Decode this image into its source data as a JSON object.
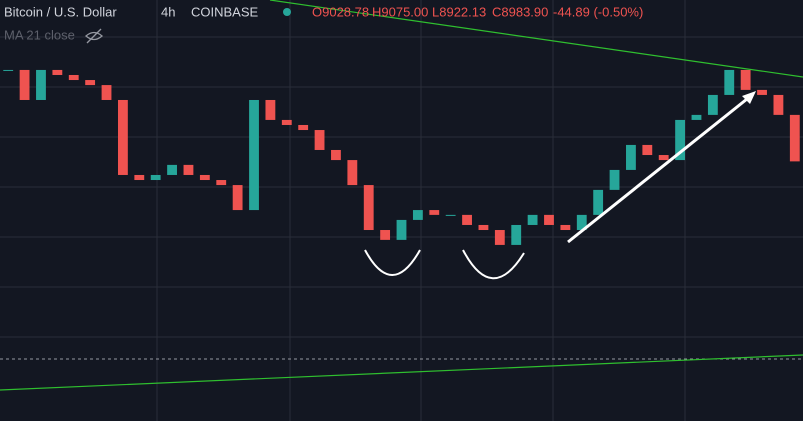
{
  "chart_data": {
    "type": "candlestick",
    "title": "Bitcoin / U.S. Dollar",
    "interval": "4h",
    "exchange": "COINBASE",
    "ohlc": [
      "O9028.78",
      "H9075.00",
      "L8922.13",
      "C8983.90"
    ],
    "change": "-44.89 (-0.50%)",
    "indicator": "MA 21 close",
    "up_color": "#26a69a",
    "down_color": "#ef5350",
    "ylim": [
      7800,
      9720
    ],
    "values": [
      9401,
      9264,
      9401,
      9378,
      9355,
      9332,
      9264,
      8922,
      8899,
      8922,
      8968,
      8922,
      8899,
      8876,
      8762,
      9264,
      9173,
      9150,
      9127,
      9036,
      8990,
      8876,
      8671,
      8626,
      8717,
      8762,
      8740,
      8740,
      8694,
      8671,
      8603,
      8694,
      8740,
      8694,
      8671,
      8740,
      8854,
      8945,
      9059,
      9013,
      8990,
      9173,
      9196,
      9287,
      9401,
      9310,
      9287,
      9196,
      8984
    ]
  }
}
